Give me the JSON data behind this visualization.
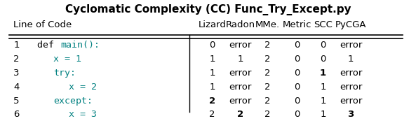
{
  "title": "Cyclomatic Complexity (CC) Func_Try_Except.py",
  "col_headers": [
    "Line of Code",
    "Lizard",
    "Radon",
    "MMe.",
    "Metric",
    "SCC",
    "PyCGA"
  ],
  "rows": [
    {
      "line_num": "1",
      "values": [
        "0",
        "error",
        "2",
        "0",
        "0",
        "error"
      ],
      "bold_cols": []
    },
    {
      "line_num": "2",
      "values": [
        "1",
        "1",
        "2",
        "0",
        "0",
        "1"
      ],
      "bold_cols": []
    },
    {
      "line_num": "3",
      "values": [
        "1",
        "error",
        "2",
        "0",
        "1",
        "error"
      ],
      "bold_cols": [
        4
      ]
    },
    {
      "line_num": "4",
      "values": [
        "1",
        "error",
        "2",
        "0",
        "1",
        "error"
      ],
      "bold_cols": []
    },
    {
      "line_num": "5",
      "values": [
        "2",
        "error",
        "2",
        "0",
        "1",
        "error"
      ],
      "bold_cols": [
        0
      ]
    },
    {
      "line_num": "6",
      "values": [
        "2",
        "2",
        "2",
        "0",
        "1",
        "3"
      ],
      "bold_cols": [
        1,
        5
      ]
    }
  ],
  "header_fontsize": 9.5,
  "data_fontsize": 9.5,
  "title_fontsize": 11,
  "bg_color": "#ffffff",
  "teal_color": "#008080",
  "black_color": "#000000"
}
